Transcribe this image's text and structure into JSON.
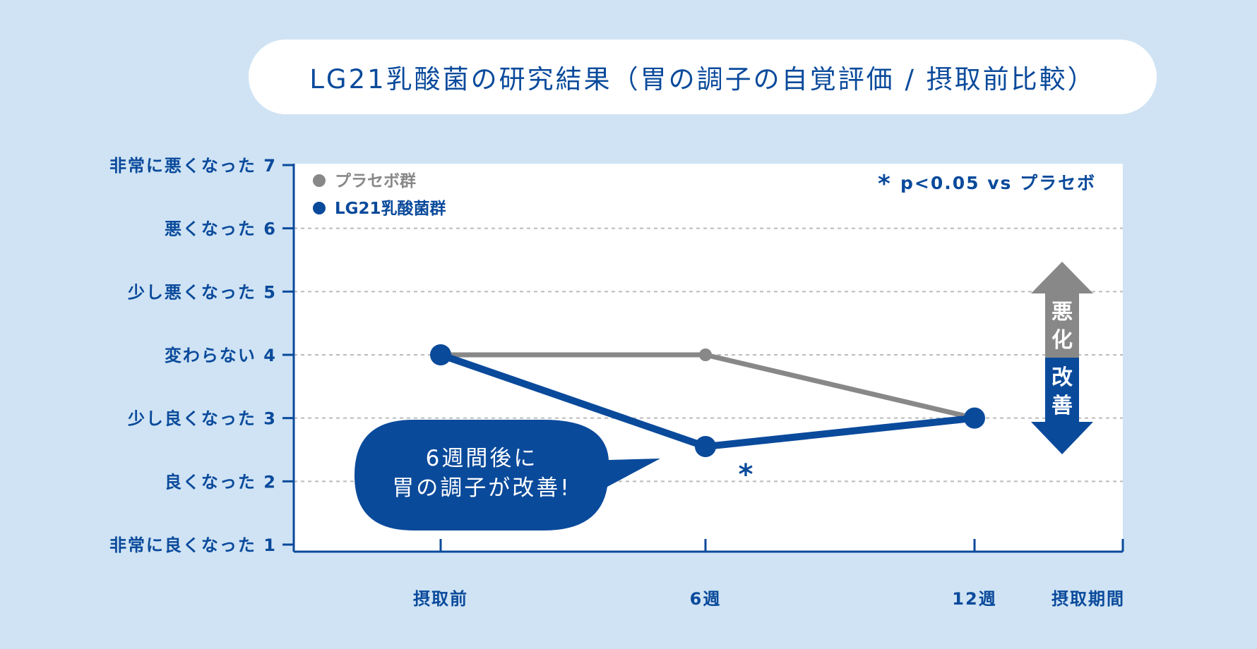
{
  "title": "LG21乳酸菌の研究結果（胃の調子の自覚評価 / 摂取前比較）",
  "colors": {
    "background": "#cfe3f4",
    "accent": "#0a4a9b",
    "placebo": "#888888",
    "plot_bg": "#ffffff",
    "grid": "#bbbbbb"
  },
  "chart_data": {
    "type": "line",
    "categories": [
      "摂取前",
      "6週",
      "12週"
    ],
    "xlabel": "摂取期間",
    "ylim": [
      1,
      7
    ],
    "y_ticks": [
      {
        "value": 7,
        "label": "非常に悪くなった 7"
      },
      {
        "value": 6,
        "label": "悪くなった 6"
      },
      {
        "value": 5,
        "label": "少し悪くなった 5"
      },
      {
        "value": 4,
        "label": "変わらない 4"
      },
      {
        "value": 3,
        "label": "少し良くなった 3"
      },
      {
        "value": 2,
        "label": "良くなった 2"
      },
      {
        "value": 1,
        "label": "非常に良くなった 1"
      }
    ],
    "grid": true,
    "legend_position": "top-left",
    "series": [
      {
        "name": "プラセボ群",
        "values": [
          4,
          4,
          3
        ],
        "color": "#888888"
      },
      {
        "name": "LG21乳酸菌群",
        "values": [
          4,
          2.55,
          3
        ],
        "color": "#0a4a9b"
      }
    ],
    "significance": {
      "marker": "*",
      "category": "6週",
      "note": "p<0.05 vs プラセボ"
    },
    "callout": {
      "lines": [
        "6週間後に",
        "胃の調子が改善!"
      ]
    },
    "direction_arrow": {
      "up_label": [
        "悪",
        "化"
      ],
      "down_label": [
        "改",
        "善"
      ]
    }
  }
}
